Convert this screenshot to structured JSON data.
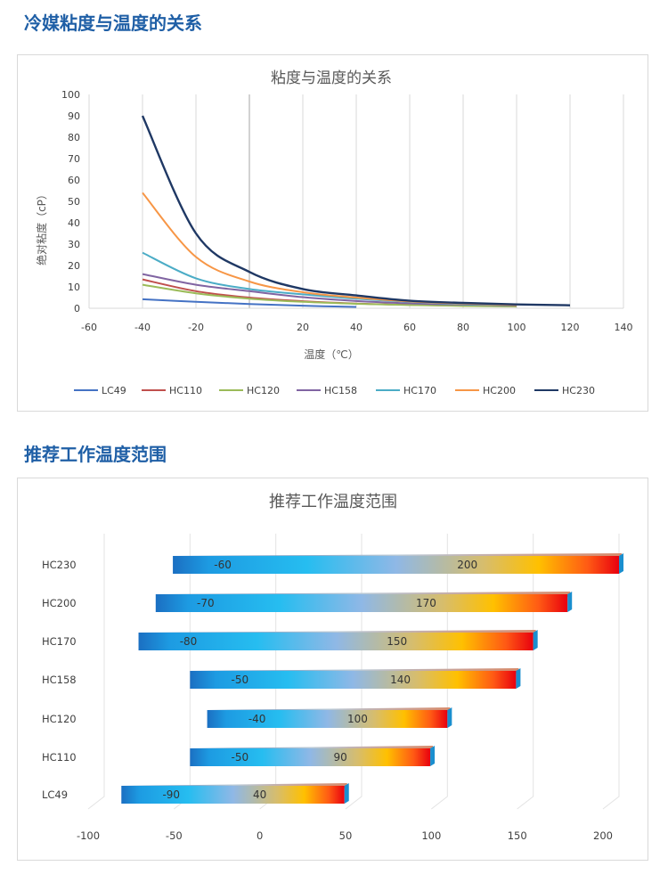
{
  "page": {
    "section1_title": "冷媒粘度与温度的关系",
    "section2_title": "推荐工作温度范围"
  },
  "colors": {
    "section_title": "#1f5fa6",
    "LC49": "#4472c4",
    "HC110": "#c0504d",
    "HC120": "#9bbb59",
    "HC158": "#8064a2",
    "HC170": "#4bacc6",
    "HC200": "#f79646",
    "HC230": "#1f3864"
  },
  "chart_data": [
    {
      "type": "line",
      "title": "粘度与温度的关系",
      "xlabel": "温度（℃）",
      "ylabel": "绝对粘度（cP）",
      "xlim": [
        -60,
        140
      ],
      "ylim": [
        0,
        100
      ],
      "xticks": [
        -60,
        -40,
        -20,
        0,
        20,
        40,
        60,
        80,
        100,
        120,
        140
      ],
      "yticks": [
        0,
        10,
        20,
        30,
        40,
        50,
        60,
        70,
        80,
        90,
        100
      ],
      "grid": "vertical",
      "legend": "bottom",
      "series": [
        {
          "name": "LC49",
          "x": [
            -40,
            -20,
            0,
            20,
            40
          ],
          "values": [
            4.2,
            3.0,
            2.0,
            1.2,
            0.6
          ]
        },
        {
          "name": "HC110",
          "x": [
            -40,
            -20,
            0,
            20,
            40,
            60,
            80,
            100
          ],
          "values": [
            13.5,
            8.0,
            5.0,
            3.3,
            2.2,
            1.6,
            1.2,
            0.9
          ]
        },
        {
          "name": "HC120",
          "x": [
            -40,
            -20,
            0,
            20,
            40,
            60,
            80,
            100
          ],
          "values": [
            11.0,
            7.0,
            4.5,
            3.0,
            2.1,
            1.5,
            1.1,
            0.9
          ]
        },
        {
          "name": "HC158",
          "x": [
            -40,
            -20,
            0,
            20,
            40,
            60,
            80,
            100
          ],
          "values": [
            16.0,
            11.0,
            8.0,
            5.2,
            3.4,
            2.3,
            1.7,
            1.3
          ]
        },
        {
          "name": "HC170",
          "x": [
            -40,
            -20,
            0,
            20,
            40,
            60,
            80,
            100
          ],
          "values": [
            26.0,
            14.0,
            9.0,
            6.5,
            4.5,
            3.0,
            2.0,
            1.5
          ]
        },
        {
          "name": "HC200",
          "x": [
            -40,
            -20,
            0,
            20,
            40,
            60,
            80,
            100
          ],
          "values": [
            54.0,
            24.0,
            12.5,
            7.5,
            5.0,
            3.2,
            2.2,
            1.5
          ]
        },
        {
          "name": "HC230",
          "x": [
            -40,
            -20,
            0,
            20,
            40,
            60,
            80,
            100,
            120
          ],
          "values": [
            90.0,
            35.0,
            17.0,
            9.0,
            6.0,
            3.5,
            2.5,
            1.8,
            1.4
          ]
        }
      ]
    },
    {
      "type": "bar",
      "orientation": "horizontal-range",
      "title": "推荐工作温度范围",
      "xlim": [
        -100,
        200
      ],
      "xticks": [
        -100,
        -50,
        0,
        50,
        100,
        150,
        200
      ],
      "categories": [
        "HC230",
        "HC200",
        "HC170",
        "HC158",
        "HC120",
        "HC110",
        "LC49"
      ],
      "ranges": [
        {
          "name": "HC230",
          "min": -60,
          "max": 200
        },
        {
          "name": "HC200",
          "min": -70,
          "max": 170
        },
        {
          "name": "HC170",
          "min": -80,
          "max": 150
        },
        {
          "name": "HC158",
          "min": -50,
          "max": 140
        },
        {
          "name": "HC120",
          "min": -40,
          "max": 100
        },
        {
          "name": "HC110",
          "min": -50,
          "max": 90
        },
        {
          "name": "LC49",
          "min": -90,
          "max": 40
        }
      ]
    }
  ]
}
